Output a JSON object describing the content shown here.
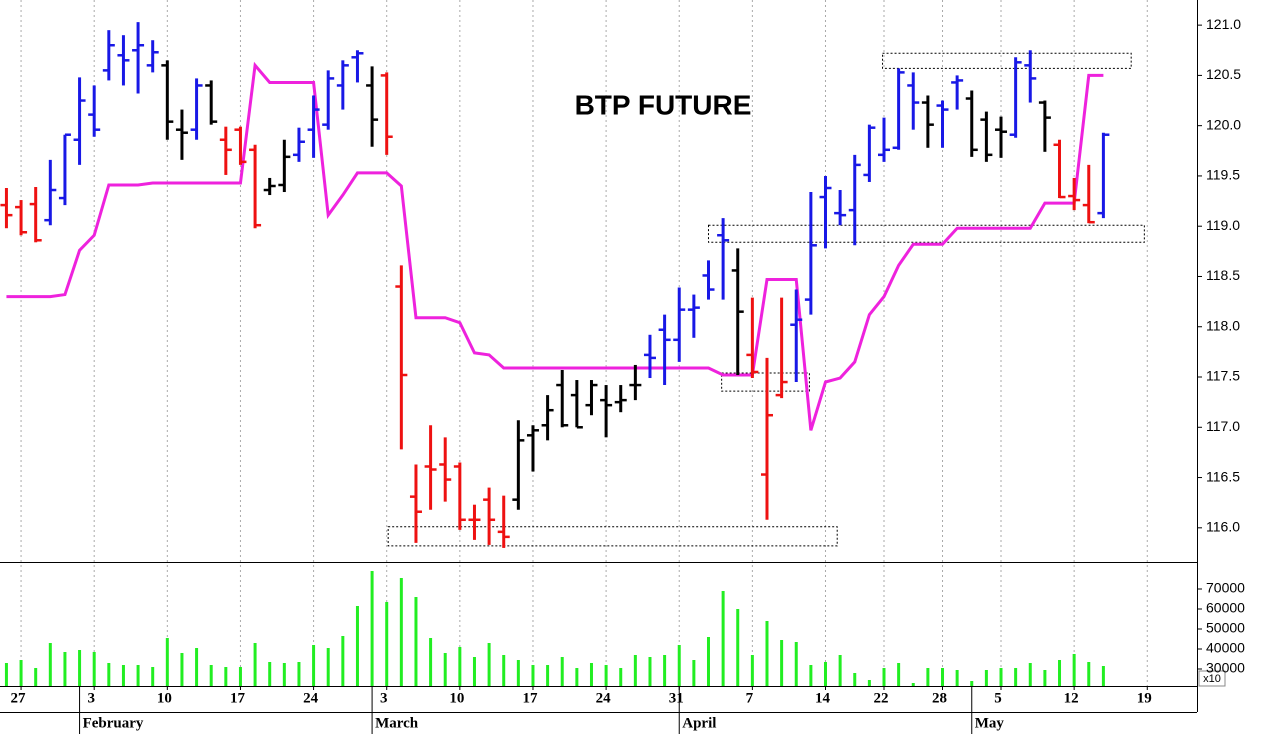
{
  "chart_data": {
    "type": "ohlc",
    "title": "BTP FUTURE",
    "x": [
      -1,
      0,
      1,
      2,
      3,
      4,
      5,
      6,
      7,
      8,
      9,
      10,
      11,
      12,
      13,
      14,
      15,
      16,
      17,
      18,
      19,
      20,
      21,
      22,
      23,
      24,
      25,
      26,
      27,
      28,
      29,
      30,
      31,
      32,
      33,
      34,
      35,
      36,
      37,
      38,
      39,
      40,
      41,
      42,
      43,
      44,
      45,
      46,
      47,
      48,
      49,
      50,
      51,
      52,
      53,
      54,
      55,
      56,
      57,
      58,
      59,
      60,
      61,
      62,
      63,
      64,
      65,
      66,
      67,
      68,
      69,
      70,
      71,
      72,
      73,
      74
    ],
    "open": [
      119.21,
      119.19,
      119.22,
      119.06,
      119.28,
      119.86,
      120.11,
      120.55,
      120.7,
      120.75,
      120.6,
      120.6,
      119.96,
      119.96,
      120.4,
      119.86,
      119.96,
      119.76,
      119.36,
      119.41,
      119.71,
      119.96,
      120.01,
      120.4,
      120.68,
      120.4,
      120.5,
      118.4,
      116.31,
      116.61,
      116.63,
      116.61,
      116.08,
      116.28,
      115.96,
      116.28,
      116.92,
      117.02,
      117.42,
      117.32,
      117.22,
      117.27,
      117.25,
      117.42,
      117.72,
      117.97,
      117.87,
      118.17,
      118.51,
      118.91,
      118.56,
      117.72,
      116.53,
      117.32,
      118.02,
      118.27,
      119.29,
      119.13,
      119.16,
      119.51,
      119.71,
      119.78,
      120.4,
      120.23,
      120.2,
      120.43,
      120.27,
      120.06,
      119.96,
      119.91,
      120.6,
      120.23,
      119.81,
      119.3,
      119.21,
      119.13
    ],
    "high": [
      119.38,
      119.26,
      119.39,
      119.66,
      119.91,
      120.48,
      120.4,
      120.95,
      120.9,
      121.03,
      120.85,
      120.65,
      120.16,
      120.47,
      120.45,
      119.99,
      119.99,
      119.81,
      119.48,
      119.86,
      119.98,
      120.3,
      120.55,
      120.65,
      120.75,
      120.59,
      120.53,
      118.61,
      116.63,
      117.02,
      116.9,
      116.65,
      116.23,
      116.4,
      116.32,
      117.07,
      117.02,
      117.32,
      117.57,
      117.47,
      117.47,
      117.42,
      117.42,
      117.62,
      117.92,
      118.12,
      118.39,
      118.32,
      118.66,
      119.08,
      118.78,
      118.29,
      117.69,
      118.29,
      118.37,
      119.34,
      119.5,
      119.36,
      119.71,
      120.01,
      120.08,
      120.57,
      120.53,
      120.3,
      120.25,
      120.5,
      120.35,
      120.14,
      120.09,
      120.68,
      120.75,
      120.25,
      119.86,
      119.48,
      119.61,
      119.93
    ],
    "low": [
      118.98,
      118.91,
      118.84,
      119.01,
      119.21,
      119.61,
      119.89,
      120.45,
      120.4,
      120.32,
      120.53,
      119.86,
      119.66,
      119.86,
      120.01,
      119.51,
      119.61,
      118.98,
      119.31,
      119.34,
      119.64,
      119.68,
      119.96,
      120.16,
      120.43,
      119.79,
      119.71,
      116.78,
      115.85,
      116.18,
      116.26,
      115.98,
      115.88,
      115.83,
      115.8,
      116.18,
      116.56,
      116.87,
      117.0,
      117.0,
      117.12,
      116.9,
      117.15,
      117.27,
      117.49,
      117.42,
      117.65,
      117.89,
      118.27,
      118.27,
      117.52,
      117.49,
      116.08,
      117.29,
      117.45,
      118.12,
      118.78,
      119.01,
      118.81,
      119.44,
      119.64,
      119.76,
      119.96,
      119.78,
      119.78,
      120.16,
      119.69,
      119.64,
      119.68,
      119.88,
      120.23,
      119.74,
      119.28,
      119.16,
      119.03,
      119.08
    ],
    "close": [
      119.11,
      118.94,
      118.86,
      119.36,
      119.91,
      120.25,
      119.96,
      120.8,
      120.65,
      120.8,
      120.73,
      120.04,
      119.93,
      120.4,
      120.04,
      119.76,
      119.64,
      119.01,
      119.4,
      119.69,
      119.84,
      120.16,
      120.47,
      120.6,
      120.72,
      120.06,
      119.89,
      117.52,
      116.16,
      116.58,
      116.48,
      116.08,
      116.08,
      116.08,
      115.91,
      116.87,
      116.97,
      117.17,
      117.02,
      117.0,
      117.42,
      117.22,
      117.27,
      117.42,
      117.69,
      117.87,
      118.17,
      118.19,
      118.37,
      118.86,
      118.15,
      117.55,
      117.12,
      117.45,
      118.07,
      118.81,
      119.38,
      119.11,
      119.61,
      119.98,
      119.76,
      120.53,
      120.23,
      120.01,
      120.16,
      120.45,
      119.76,
      119.71,
      119.94,
      120.63,
      120.47,
      120.08,
      119.29,
      119.26,
      119.04,
      119.91
    ],
    "bar_colors": [
      "#ee1111",
      "#ee1111",
      "#ee1111",
      "#1818e6",
      "#1818e6",
      "#1818e6",
      "#1818e6",
      "#1818e6",
      "#1818e6",
      "#1818e6",
      "#1818e6",
      "#000000",
      "#000000",
      "#1818e6",
      "#000000",
      "#ee1111",
      "#ee1111",
      "#ee1111",
      "#000000",
      "#000000",
      "#1818e6",
      "#1818e6",
      "#1818e6",
      "#1818e6",
      "#1818e6",
      "#000000",
      "#ee1111",
      "#ee1111",
      "#ee1111",
      "#ee1111",
      "#ee1111",
      "#ee1111",
      "#ee1111",
      "#ee1111",
      "#ee1111",
      "#000000",
      "#000000",
      "#000000",
      "#000000",
      "#000000",
      "#000000",
      "#000000",
      "#000000",
      "#000000",
      "#1818e6",
      "#1818e6",
      "#1818e6",
      "#1818e6",
      "#1818e6",
      "#1818e6",
      "#000000",
      "#ee1111",
      "#ee1111",
      "#ee1111",
      "#1818e6",
      "#1818e6",
      "#1818e6",
      "#1818e6",
      "#1818e6",
      "#1818e6",
      "#1818e6",
      "#1818e6",
      "#1818e6",
      "#000000",
      "#1818e6",
      "#1818e6",
      "#000000",
      "#000000",
      "#000000",
      "#1818e6",
      "#1818e6",
      "#000000",
      "#ee1111",
      "#ee1111",
      "#ee1111",
      "#1818e6"
    ],
    "stop_line": {
      "color": "#ee22dd",
      "values": [
        118.3,
        118.3,
        118.3,
        118.3,
        118.32,
        118.76,
        118.91,
        119.41,
        119.41,
        119.41,
        119.43,
        119.43,
        119.43,
        119.43,
        119.43,
        119.43,
        119.43,
        120.6,
        120.43,
        120.43,
        120.43,
        120.43,
        119.11,
        119.31,
        119.53,
        119.53,
        119.53,
        119.4,
        118.09,
        118.09,
        118.09,
        118.04,
        117.74,
        117.72,
        117.59,
        117.59,
        117.59,
        117.59,
        117.59,
        117.59,
        117.59,
        117.59,
        117.59,
        117.59,
        117.59,
        117.59,
        117.59,
        117.59,
        117.59,
        117.52,
        117.52,
        117.52,
        118.47,
        118.47,
        118.47,
        116.97,
        117.45,
        117.49,
        117.65,
        118.12,
        118.3,
        118.61,
        118.82,
        118.82,
        118.82,
        118.98,
        118.98,
        118.98,
        118.98,
        118.98,
        118.98,
        119.23,
        119.23,
        119.23,
        120.5,
        120.5
      ]
    },
    "zones": [
      {
        "xrange": [
          58.9,
          75.9
        ],
        "yrange": [
          120.57,
          120.72
        ]
      },
      {
        "xrange": [
          47.0,
          76.8
        ],
        "yrange": [
          118.84,
          119.01
        ]
      },
      {
        "xrange": [
          47.9,
          53.9
        ],
        "yrange": [
          117.36,
          117.54
        ]
      },
      {
        "xrange": [
          25.1,
          55.8
        ],
        "yrange": [
          115.82,
          116.01
        ]
      }
    ],
    "ylim": [
      115.66,
      121.25
    ],
    "yticks": [
      {
        "value": 116,
        "label": "116.0"
      },
      116.5,
      {
        "value": 117,
        "label": "117.0"
      },
      117.5,
      {
        "value": 118,
        "label": "118.0"
      },
      118.5,
      {
        "value": 119,
        "label": "119.0"
      },
      119.5,
      {
        "value": 120,
        "label": "120.0"
      },
      120.5,
      {
        "value": 121,
        "label": "121.0"
      }
    ],
    "xlim": [
      -1.44,
      80.4
    ],
    "xticks": [
      {
        "value": 0,
        "label": "27"
      },
      {
        "value": 5,
        "label": "3"
      },
      {
        "value": 10,
        "label": "10"
      },
      {
        "value": 15,
        "label": "17"
      },
      {
        "value": 20,
        "label": "24"
      },
      {
        "value": 25,
        "label": "3"
      },
      {
        "value": 30,
        "label": "10"
      },
      {
        "value": 35,
        "label": "17"
      },
      {
        "value": 40,
        "label": "24"
      },
      {
        "value": 45,
        "label": "31"
      },
      {
        "value": 50,
        "label": "7"
      },
      {
        "value": 55,
        "label": "14"
      },
      {
        "value": 59,
        "label": "22"
      },
      {
        "value": 63,
        "label": "28"
      },
      {
        "value": 67,
        "label": "5"
      },
      {
        "value": 72,
        "label": "12"
      },
      {
        "value": 77,
        "label": "19"
      }
    ],
    "months": [
      {
        "value": 4,
        "label": "February"
      },
      {
        "value": 24,
        "label": "March"
      },
      {
        "value": 45,
        "label": "April"
      },
      {
        "value": 65,
        "label": "May"
      }
    ],
    "volume": {
      "color": "#22ee22",
      "unit_label": "x10",
      "values": [
        33000,
        34500,
        30500,
        43000,
        38500,
        39500,
        38500,
        33000,
        32000,
        32000,
        31000,
        45500,
        38000,
        40500,
        32000,
        31000,
        31000,
        43000,
        33500,
        33000,
        33500,
        42000,
        40500,
        46500,
        61500,
        79000,
        63500,
        75500,
        66000,
        45500,
        38000,
        41000,
        36000,
        43000,
        37000,
        34500,
        32000,
        32000,
        36000,
        30500,
        33000,
        32000,
        30500,
        37000,
        36000,
        37000,
        42000,
        34500,
        46000,
        69000,
        60000,
        37000,
        54000,
        44500,
        43500,
        32000,
        33500,
        37000,
        28000,
        24500,
        30500,
        33000,
        23000,
        30500,
        30500,
        29500,
        24000,
        29500,
        30500,
        30500,
        33000,
        29500,
        34500,
        37500,
        33500,
        31500
      ],
      "ylim": [
        21500,
        83000
      ],
      "yticks": [
        30000,
        40000,
        50000,
        60000,
        70000
      ]
    }
  }
}
